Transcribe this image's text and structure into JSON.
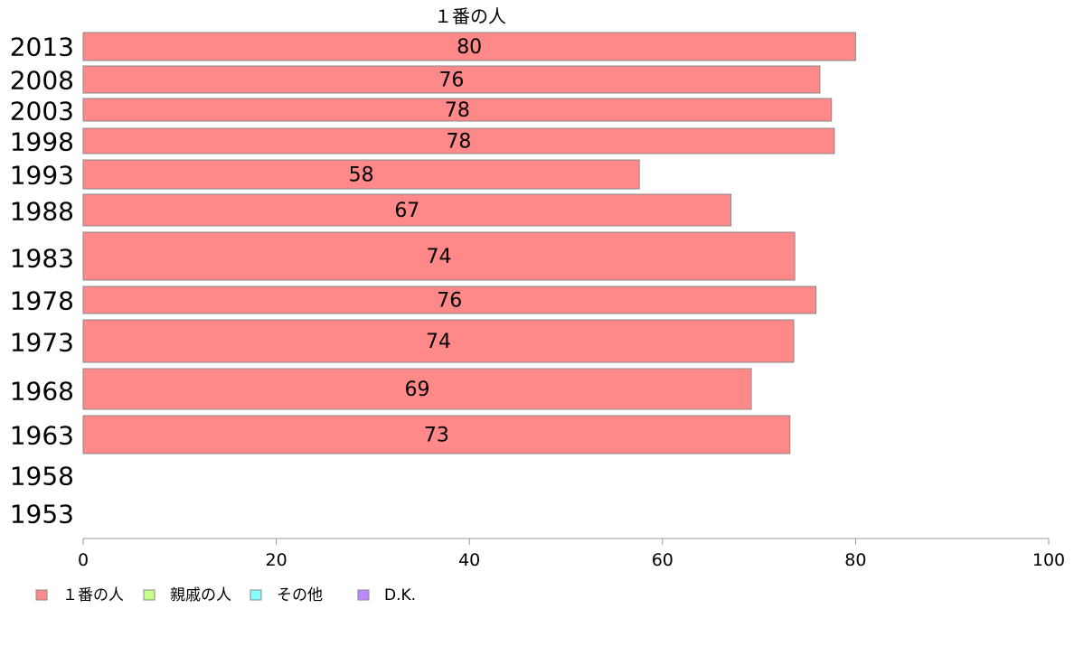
{
  "chart_data": {
    "type": "bar",
    "orientation": "horizontal",
    "title": "１番の人",
    "categories": [
      "2013",
      "2008",
      "2003",
      "1998",
      "1993",
      "1988",
      "1983",
      "1978",
      "1973",
      "1968",
      "1963",
      "1958",
      "1953"
    ],
    "series": [
      {
        "name": "１番の人",
        "color": "#ff8888",
        "values": [
          80,
          76.3,
          77.5,
          77.8,
          57.6,
          67.1,
          73.7,
          75.9,
          73.6,
          69.2,
          73.2,
          null,
          null
        ],
        "labels": [
          "80",
          "76",
          "78",
          "78",
          "58",
          "67",
          "74",
          "76",
          "74",
          "69",
          "73",
          "",
          ""
        ]
      }
    ],
    "xlim": [
      0,
      100
    ],
    "xticks": [
      0,
      20,
      40,
      60,
      80,
      100
    ],
    "xtick_labels": [
      "0",
      "20",
      "40",
      "60",
      "80",
      "100"
    ],
    "grid": false,
    "legend_placement": "bottom-left",
    "legend": [
      {
        "label": "１番の人",
        "color": "#ff8888"
      },
      {
        "label": "親戚の人",
        "color": "#c8ff88"
      },
      {
        "label": "その他",
        "color": "#88ffff"
      },
      {
        "label": "D.K.",
        "color": "#bb88ff"
      }
    ]
  }
}
